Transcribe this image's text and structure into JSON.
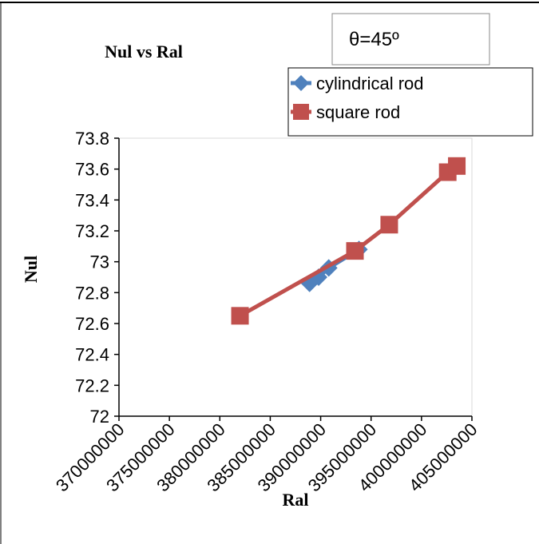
{
  "chart_data": {
    "type": "scatter",
    "title": "Nul vs Ral",
    "annotation": "θ=45º",
    "xlabel": "Ral",
    "ylabel": "Nul",
    "xlim": [
      370000000,
      405000000
    ],
    "ylim": [
      72,
      73.8
    ],
    "x_ticks": [
      "370000000",
      "375000000",
      "380000000",
      "385000000",
      "390000000",
      "395000000",
      "400000000",
      "405000000"
    ],
    "y_ticks": [
      "73.8",
      "73.6",
      "73.4",
      "73.2",
      "73",
      "72.8",
      "72.6",
      "72.4",
      "72.2",
      "72"
    ],
    "grid": false,
    "legend_position": "top-right",
    "series": [
      {
        "name": "cylindrical rod",
        "marker": "diamond",
        "color": "#4f81bd",
        "points": [
          [
            388900000,
            72.86
          ],
          [
            389800000,
            72.9
          ],
          [
            390800000,
            72.96
          ],
          [
            393800000,
            73.08
          ]
        ]
      },
      {
        "name": "square rod",
        "marker": "square",
        "color": "#c0504d",
        "points": [
          [
            382000000,
            72.65
          ],
          [
            393400000,
            73.07
          ],
          [
            396800000,
            73.24
          ],
          [
            402600000,
            73.58
          ],
          [
            403500000,
            73.62
          ]
        ]
      }
    ]
  }
}
